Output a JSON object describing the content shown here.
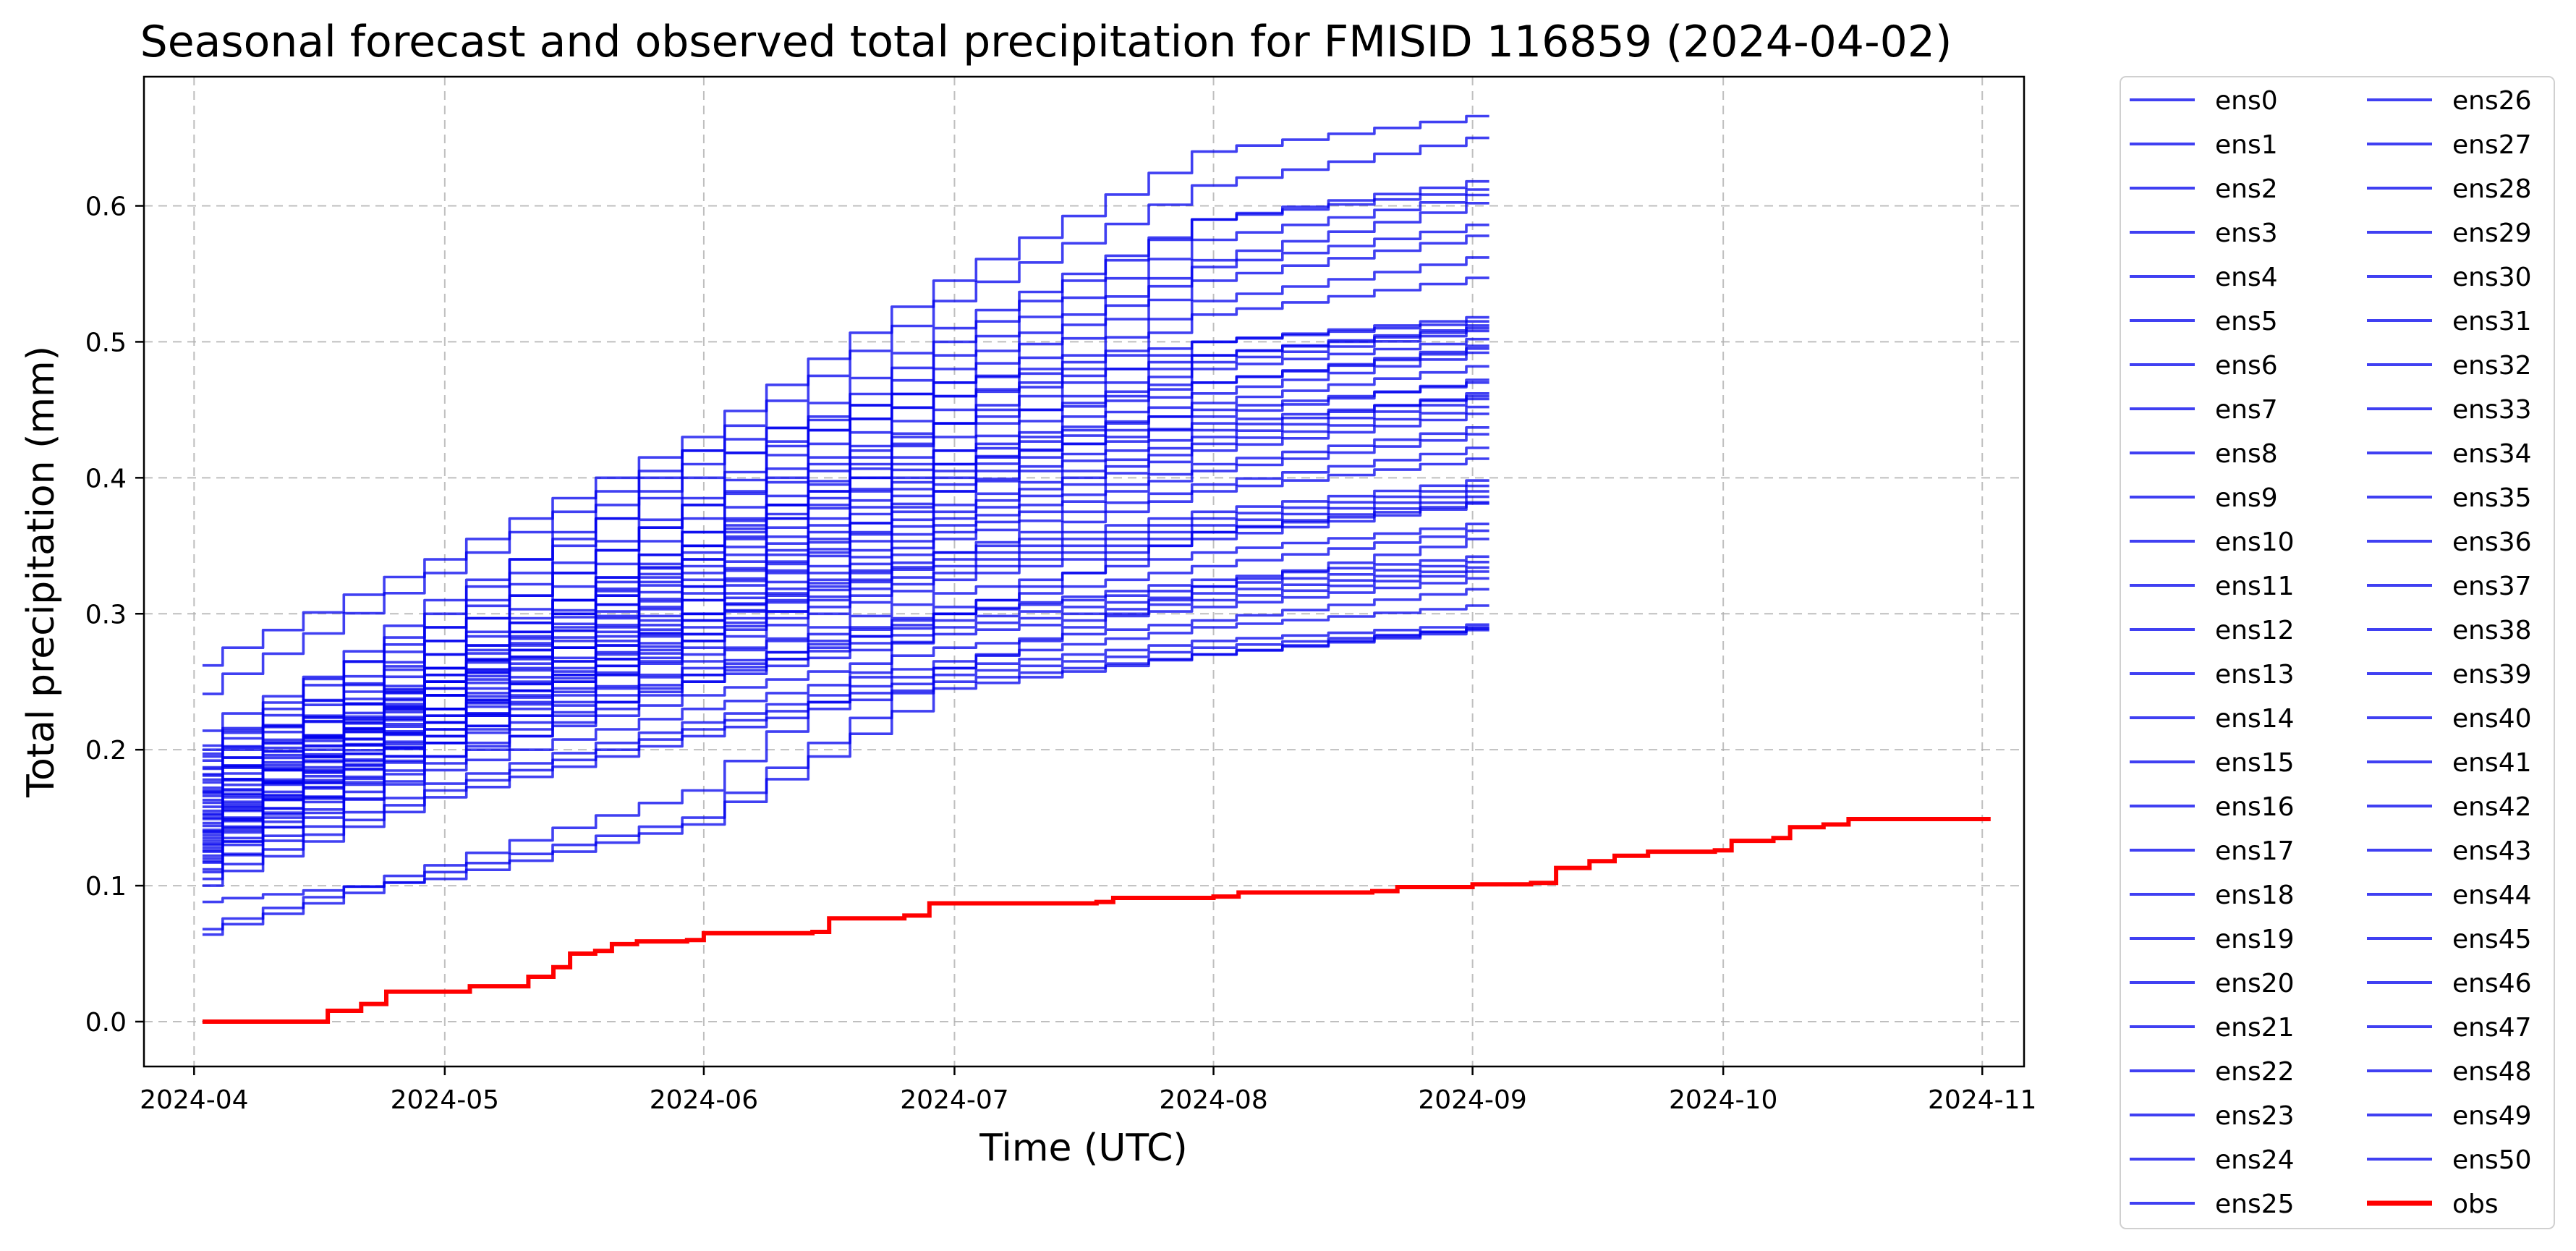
{
  "chart_data": {
    "type": "line",
    "title": "Seasonal forecast and observed total precipitation for FMISID 116859 (2024-04-02)",
    "xlabel": "Time (UTC)",
    "ylabel": "Total precipitation (mm)",
    "xlim": [
      "2024-03-26",
      "2024-11-06"
    ],
    "ylim": [
      -0.033,
      0.695
    ],
    "x_ticks": [
      "2024-04",
      "2024-05",
      "2024-06",
      "2024-07",
      "2024-08",
      "2024-09",
      "2024-10",
      "2024-11"
    ],
    "y_ticks": [
      "0.0",
      "0.1",
      "0.2",
      "0.3",
      "0.4",
      "0.5",
      "0.6"
    ],
    "grid": true,
    "legend_placement": "outside right, two columns",
    "colors": {
      "ensemble": "#0000ee",
      "obs": "#ff0000"
    },
    "ensemble_dates": [
      "2024-04-02",
      "2024-05-01",
      "2024-06-01",
      "2024-07-01",
      "2024-08-01",
      "2024-09-03"
    ],
    "series": [
      {
        "name": "ens0",
        "values": [
          0.262,
          0.34,
          0.43,
          0.545,
          0.64,
          0.666
        ]
      },
      {
        "name": "ens1",
        "values": [
          0.241,
          0.33,
          0.42,
          0.53,
          0.615,
          0.65
        ]
      },
      {
        "name": "ens2",
        "values": [
          0.197,
          0.31,
          0.4,
          0.51,
          0.59,
          0.618
        ]
      },
      {
        "name": "ens3",
        "values": [
          0.214,
          0.29,
          0.385,
          0.5,
          0.59,
          0.612
        ]
      },
      {
        "name": "ens4",
        "values": [
          0.186,
          0.28,
          0.38,
          0.49,
          0.575,
          0.608
        ]
      },
      {
        "name": "ens5",
        "values": [
          0.172,
          0.27,
          0.37,
          0.48,
          0.56,
          0.602
        ]
      },
      {
        "name": "ens6",
        "values": [
          0.161,
          0.26,
          0.36,
          0.47,
          0.555,
          0.586
        ]
      },
      {
        "name": "ens7",
        "values": [
          0.15,
          0.255,
          0.35,
          0.46,
          0.545,
          0.578
        ]
      },
      {
        "name": "ens8",
        "values": [
          0.139,
          0.25,
          0.345,
          0.45,
          0.53,
          0.562
        ]
      },
      {
        "name": "ens9",
        "values": [
          0.13,
          0.24,
          0.34,
          0.44,
          0.52,
          0.547
        ]
      },
      {
        "name": "ens10",
        "values": [
          0.203,
          0.27,
          0.35,
          0.44,
          0.5,
          0.518
        ]
      },
      {
        "name": "ens11",
        "values": [
          0.181,
          0.26,
          0.34,
          0.43,
          0.49,
          0.512
        ]
      },
      {
        "name": "ens12",
        "values": [
          0.169,
          0.25,
          0.335,
          0.42,
          0.485,
          0.508
        ]
      },
      {
        "name": "ens13",
        "values": [
          0.155,
          0.245,
          0.33,
          0.41,
          0.48,
          0.502
        ]
      },
      {
        "name": "ens14",
        "values": [
          0.144,
          0.24,
          0.325,
          0.405,
          0.47,
          0.497
        ]
      },
      {
        "name": "ens15",
        "values": [
          0.131,
          0.23,
          0.32,
          0.4,
          0.462,
          0.492
        ]
      },
      {
        "name": "ens16",
        "values": [
          0.125,
          0.22,
          0.31,
          0.395,
          0.455,
          0.482
        ]
      },
      {
        "name": "ens17",
        "values": [
          0.12,
          0.21,
          0.3,
          0.39,
          0.445,
          0.472
        ]
      },
      {
        "name": "ens18",
        "values": [
          0.192,
          0.255,
          0.32,
          0.39,
          0.435,
          0.462
        ]
      },
      {
        "name": "ens19",
        "values": [
          0.176,
          0.245,
          0.315,
          0.38,
          0.43,
          0.458
        ]
      },
      {
        "name": "ens20",
        "values": [
          0.166,
          0.24,
          0.31,
          0.375,
          0.425,
          0.452
        ]
      },
      {
        "name": "ens21",
        "values": [
          0.152,
          0.23,
          0.3,
          0.37,
          0.42,
          0.447
        ]
      },
      {
        "name": "ens22",
        "values": [
          0.141,
          0.225,
          0.295,
          0.365,
          0.41,
          0.437
        ]
      },
      {
        "name": "ens23",
        "values": [
          0.135,
          0.22,
          0.29,
          0.36,
          0.405,
          0.432
        ]
      },
      {
        "name": "ens24",
        "values": [
          0.128,
          0.215,
          0.285,
          0.355,
          0.395,
          0.422
        ]
      },
      {
        "name": "ens25",
        "values": [
          0.118,
          0.205,
          0.28,
          0.345,
          0.39,
          0.414
        ]
      },
      {
        "name": "ens26",
        "values": [
          0.2,
          0.25,
          0.3,
          0.345,
          0.375,
          0.398
        ]
      },
      {
        "name": "ens27",
        "values": [
          0.178,
          0.24,
          0.295,
          0.34,
          0.37,
          0.394
        ]
      },
      {
        "name": "ens28",
        "values": [
          0.163,
          0.23,
          0.285,
          0.335,
          0.365,
          0.39
        ]
      },
      {
        "name": "ens29",
        "values": [
          0.149,
          0.225,
          0.28,
          0.33,
          0.36,
          0.386
        ]
      },
      {
        "name": "ens30",
        "values": [
          0.137,
          0.215,
          0.275,
          0.325,
          0.355,
          0.381
        ]
      },
      {
        "name": "ens31",
        "values": [
          0.126,
          0.205,
          0.265,
          0.315,
          0.345,
          0.366
        ]
      },
      {
        "name": "ens32",
        "values": [
          0.117,
          0.195,
          0.255,
          0.305,
          0.335,
          0.361
        ]
      },
      {
        "name": "ens33",
        "values": [
          0.11,
          0.19,
          0.25,
          0.3,
          0.325,
          0.342
        ]
      },
      {
        "name": "ens34",
        "values": [
          0.187,
          0.23,
          0.27,
          0.3,
          0.32,
          0.338
        ]
      },
      {
        "name": "ens35",
        "values": [
          0.17,
          0.22,
          0.26,
          0.295,
          0.315,
          0.334
        ]
      },
      {
        "name": "ens36",
        "values": [
          0.158,
          0.21,
          0.255,
          0.29,
          0.31,
          0.331
        ]
      },
      {
        "name": "ens37",
        "values": [
          0.146,
          0.205,
          0.25,
          0.285,
          0.305,
          0.326
        ]
      },
      {
        "name": "ens38",
        "values": [
          0.133,
          0.195,
          0.24,
          0.275,
          0.295,
          0.318
        ]
      },
      {
        "name": "ens39",
        "values": [
          0.122,
          0.185,
          0.23,
          0.265,
          0.29,
          0.306
        ]
      },
      {
        "name": "ens40",
        "values": [
          0.112,
          0.175,
          0.22,
          0.26,
          0.28,
          0.292
        ]
      },
      {
        "name": "ens41",
        "values": [
          0.105,
          0.17,
          0.215,
          0.255,
          0.275,
          0.289
        ]
      },
      {
        "name": "ens42",
        "values": [
          0.1,
          0.165,
          0.21,
          0.25,
          0.27,
          0.288
        ]
      },
      {
        "name": "ens43",
        "values": [
          0.088,
          0.105,
          0.145,
          0.245,
          0.27,
          0.29
        ]
      },
      {
        "name": "ens44",
        "values": [
          0.064,
          0.11,
          0.15,
          0.26,
          0.32,
          0.355
        ]
      },
      {
        "name": "ens45",
        "values": [
          0.068,
          0.115,
          0.17,
          0.3,
          0.36,
          0.382
        ]
      },
      {
        "name": "ens46",
        "values": [
          0.195,
          0.3,
          0.42,
          0.47,
          0.5,
          0.515
        ]
      },
      {
        "name": "ens47",
        "values": [
          0.182,
          0.29,
          0.41,
          0.46,
          0.49,
          0.51
        ]
      },
      {
        "name": "ens48",
        "values": [
          0.168,
          0.28,
          0.38,
          0.44,
          0.47,
          0.495
        ]
      },
      {
        "name": "ens49",
        "values": [
          0.153,
          0.26,
          0.36,
          0.42,
          0.45,
          0.47
        ]
      },
      {
        "name": "ens50",
        "values": [
          0.14,
          0.25,
          0.35,
          0.41,
          0.44,
          0.46
        ]
      }
    ],
    "obs": {
      "name": "obs",
      "points": [
        [
          "2024-04-02",
          0.0
        ],
        [
          "2024-04-15",
          0.0
        ],
        [
          "2024-04-17",
          0.008
        ],
        [
          "2024-04-21",
          0.013
        ],
        [
          "2024-04-24",
          0.022
        ],
        [
          "2024-05-01",
          0.022
        ],
        [
          "2024-05-04",
          0.026
        ],
        [
          "2024-05-09",
          0.026
        ],
        [
          "2024-05-11",
          0.033
        ],
        [
          "2024-05-14",
          0.04
        ],
        [
          "2024-05-16",
          0.05
        ],
        [
          "2024-05-19",
          0.052
        ],
        [
          "2024-05-21",
          0.057
        ],
        [
          "2024-05-24",
          0.059
        ],
        [
          "2024-05-30",
          0.06
        ],
        [
          "2024-06-01",
          0.065
        ],
        [
          "2024-06-14",
          0.066
        ],
        [
          "2024-06-16",
          0.076
        ],
        [
          "2024-06-25",
          0.078
        ],
        [
          "2024-06-28",
          0.087
        ],
        [
          "2024-07-18",
          0.088
        ],
        [
          "2024-07-20",
          0.091
        ],
        [
          "2024-08-01",
          0.092
        ],
        [
          "2024-08-04",
          0.095
        ],
        [
          "2024-08-20",
          0.096
        ],
        [
          "2024-08-23",
          0.099
        ],
        [
          "2024-09-01",
          0.101
        ],
        [
          "2024-09-08",
          0.102
        ],
        [
          "2024-09-11",
          0.113
        ],
        [
          "2024-09-15",
          0.118
        ],
        [
          "2024-09-18",
          0.122
        ],
        [
          "2024-09-22",
          0.125
        ],
        [
          "2024-09-30",
          0.126
        ],
        [
          "2024-10-02",
          0.133
        ],
        [
          "2024-10-07",
          0.135
        ],
        [
          "2024-10-09",
          0.143
        ],
        [
          "2024-10-13",
          0.145
        ],
        [
          "2024-10-16",
          0.149
        ],
        [
          "2024-11-02",
          0.149
        ]
      ]
    }
  }
}
